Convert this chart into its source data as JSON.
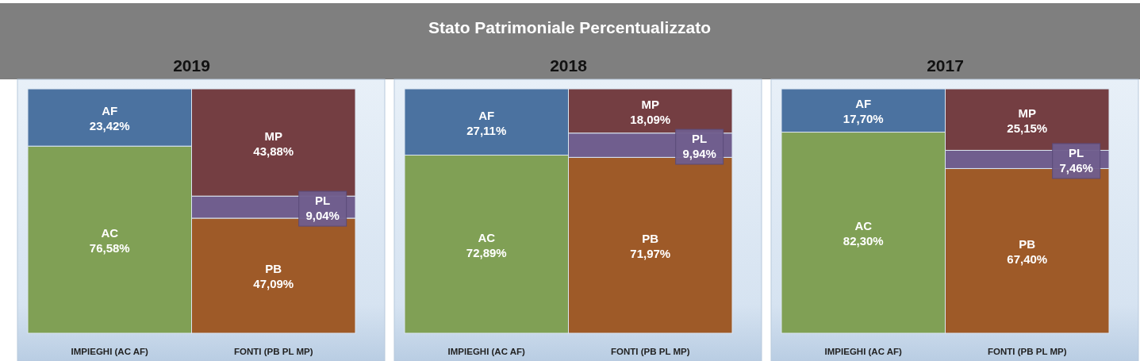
{
  "chart_data": [
    {
      "type": "bar",
      "subtitle": "2019",
      "stacked": true,
      "tick_labels": "x",
      "categories": [
        "IMPIEGHI (AC AF)",
        "FONTI (PB PL MP)"
      ],
      "series": [
        {
          "name": "AC",
          "color": "#80a055",
          "values": [
            76.58,
            null
          ],
          "value_labels": [
            "76,58%",
            null
          ]
        },
        {
          "name": "AF",
          "color": "#4b72a0",
          "values": [
            23.42,
            null
          ],
          "value_labels": [
            "23,42%",
            null
          ]
        },
        {
          "name": "PB",
          "color": "#9e5a28",
          "values": [
            null,
            47.09
          ],
          "value_labels": [
            null,
            "47,09%"
          ]
        },
        {
          "name": "PL",
          "color": "#705e8e",
          "values": [
            null,
            9.04
          ],
          "value_labels": [
            null,
            "9,04%"
          ]
        },
        {
          "name": "MP",
          "color": "#743e42",
          "values": [
            null,
            43.88
          ],
          "value_labels": [
            null,
            "43,88%"
          ]
        }
      ]
    },
    {
      "type": "bar",
      "title": "Stato Patrimoniale Percentualizzato",
      "subtitle": "2018",
      "stacked": true,
      "tick_labels": "x",
      "categories": [
        "IMPIEGHI (AC AF)",
        "FONTI (PB PL MP)"
      ],
      "series": [
        {
          "name": "AC",
          "color": "#80a055",
          "values": [
            72.89,
            null
          ],
          "value_labels": [
            "72,89%",
            null
          ]
        },
        {
          "name": "AF",
          "color": "#4b72a0",
          "values": [
            27.11,
            null
          ],
          "value_labels": [
            "27,11%",
            null
          ]
        },
        {
          "name": "PB",
          "color": "#9e5a28",
          "values": [
            null,
            71.97
          ],
          "value_labels": [
            null,
            "71,97%"
          ]
        },
        {
          "name": "PL",
          "color": "#705e8e",
          "values": [
            null,
            9.94
          ],
          "value_labels": [
            null,
            "9,94%"
          ]
        },
        {
          "name": "MP",
          "color": "#743e42",
          "values": [
            null,
            18.09
          ],
          "value_labels": [
            null,
            "18,09%"
          ]
        }
      ]
    },
    {
      "type": "bar",
      "subtitle": "2017",
      "stacked": true,
      "tick_labels": "x",
      "categories": [
        "IMPIEGHI (AC AF)",
        "FONTI (PB PL MP)"
      ],
      "series": [
        {
          "name": "AC",
          "color": "#80a055",
          "values": [
            82.3,
            null
          ],
          "value_labels": [
            "82,30%",
            null
          ]
        },
        {
          "name": "AF",
          "color": "#4b72a0",
          "values": [
            17.7,
            null
          ],
          "value_labels": [
            "17,70%",
            null
          ]
        },
        {
          "name": "PB",
          "color": "#9e5a28",
          "values": [
            null,
            67.4
          ],
          "value_labels": [
            null,
            "67,40%"
          ]
        },
        {
          "name": "PL",
          "color": "#705e8e",
          "values": [
            null,
            7.46
          ],
          "value_labels": [
            null,
            "7,46%"
          ]
        },
        {
          "name": "MP",
          "color": "#743e42",
          "values": [
            null,
            25.15
          ],
          "value_labels": [
            null,
            "25,15%"
          ]
        }
      ]
    }
  ]
}
